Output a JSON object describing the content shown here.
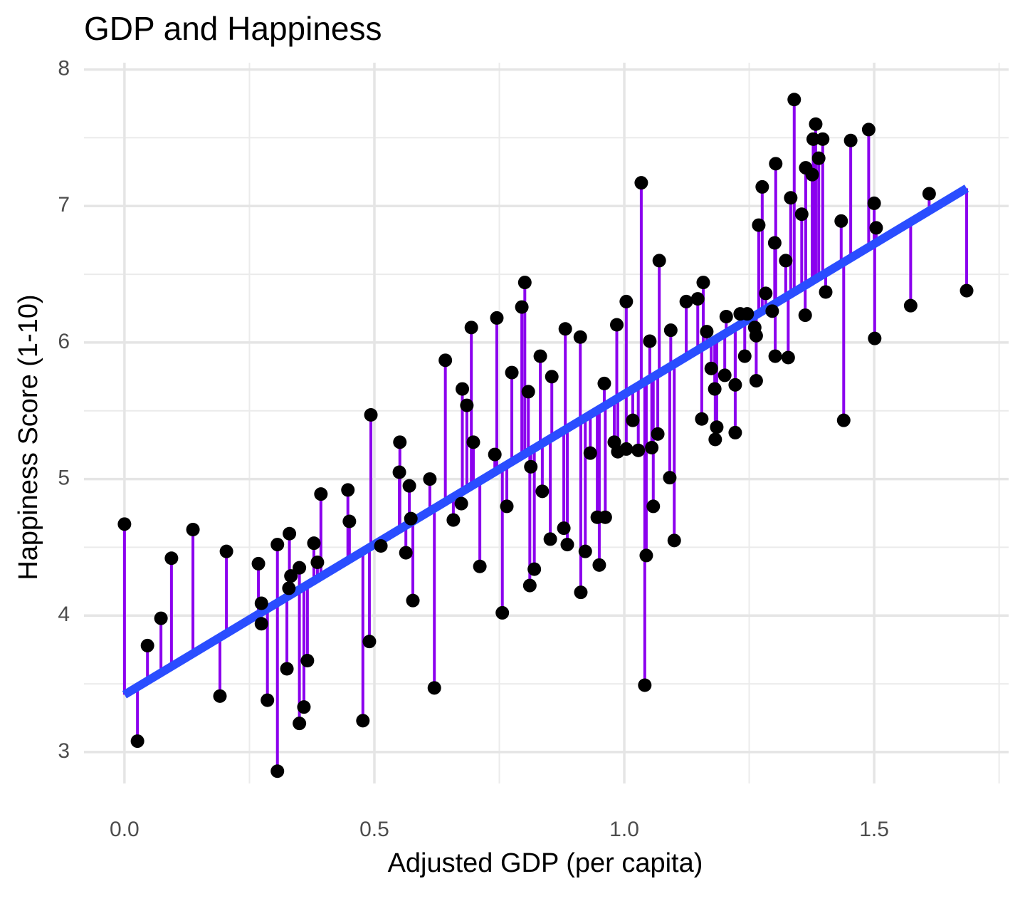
{
  "chart_data": {
    "type": "scatter",
    "title": "GDP and Happiness",
    "x_label": "Adjusted GDP (per capita)",
    "y_label": "Happiness Score (1-10)",
    "x": [
      0.0,
      0.026,
      0.046,
      0.073,
      0.094,
      0.137,
      0.191,
      0.204,
      0.268,
      0.274,
      0.274,
      0.286,
      0.306,
      0.306,
      0.325,
      0.33,
      0.333,
      0.329,
      0.35,
      0.35,
      0.359,
      0.366,
      0.379,
      0.386,
      0.393,
      0.447,
      0.45,
      0.477,
      0.49,
      0.493,
      0.513,
      0.551,
      0.55,
      0.563,
      0.57,
      0.573,
      0.577,
      0.611,
      0.62,
      0.642,
      0.658,
      0.674,
      0.676,
      0.685,
      0.694,
      0.698,
      0.711,
      0.741,
      0.745,
      0.756,
      0.765,
      0.775,
      0.795,
      0.801,
      0.808,
      0.811,
      0.813,
      0.82,
      0.832,
      0.836,
      0.852,
      0.855,
      0.879,
      0.882,
      0.886,
      0.912,
      0.913,
      0.922,
      0.932,
      0.946,
      0.95,
      0.96,
      0.962,
      0.98,
      0.985,
      0.987,
      1.004,
      1.004,
      1.017,
      1.028,
      1.034,
      1.041,
      1.044,
      1.051,
      1.055,
      1.058,
      1.067,
      1.07,
      1.091,
      1.093,
      1.1,
      1.124,
      1.147,
      1.155,
      1.158,
      1.165,
      1.174,
      1.181,
      1.182,
      1.185,
      1.201,
      1.204,
      1.222,
      1.222,
      1.232,
      1.241,
      1.246,
      1.261,
      1.264,
      1.264,
      1.269,
      1.276,
      1.283,
      1.296,
      1.301,
      1.302,
      1.303,
      1.323,
      1.328,
      1.333,
      1.34,
      1.355,
      1.362,
      1.363,
      1.376,
      1.378,
      1.383,
      1.389,
      1.397,
      1.403,
      1.434,
      1.439,
      1.453,
      1.489,
      1.5,
      1.501,
      1.504,
      1.573,
      1.61,
      1.685
    ],
    "values": [
      4.67,
      3.08,
      3.78,
      3.98,
      4.42,
      4.63,
      3.41,
      4.47,
      4.38,
      4.09,
      3.94,
      3.38,
      4.52,
      2.86,
      3.61,
      4.6,
      4.29,
      4.2,
      4.35,
      3.21,
      3.33,
      3.67,
      4.53,
      4.39,
      4.89,
      4.92,
      4.69,
      3.23,
      3.81,
      5.47,
      4.51,
      5.27,
      5.05,
      4.46,
      4.95,
      4.71,
      4.11,
      5.0,
      3.47,
      5.87,
      4.7,
      4.82,
      5.66,
      5.54,
      6.11,
      5.27,
      4.36,
      5.18,
      6.18,
      4.02,
      4.8,
      5.78,
      6.26,
      6.44,
      5.64,
      4.22,
      5.09,
      4.34,
      5.9,
      4.91,
      4.56,
      5.75,
      4.64,
      6.1,
      4.52,
      6.04,
      4.17,
      4.47,
      5.19,
      4.72,
      4.37,
      5.7,
      4.72,
      5.27,
      6.13,
      5.2,
      6.3,
      5.22,
      5.43,
      5.21,
      7.17,
      3.49,
      4.44,
      6.01,
      5.23,
      4.8,
      5.33,
      6.6,
      5.01,
      6.09,
      4.55,
      6.3,
      6.32,
      5.44,
      6.44,
      6.08,
      5.81,
      5.66,
      5.29,
      5.38,
      5.76,
      6.19,
      5.69,
      5.34,
      6.21,
      5.9,
      6.21,
      6.11,
      5.72,
      6.05,
      6.86,
      7.14,
      6.36,
      6.23,
      6.73,
      5.9,
      7.31,
      6.6,
      5.89,
      7.06,
      7.78,
      6.94,
      6.2,
      7.28,
      7.23,
      7.49,
      7.6,
      7.35,
      7.49,
      6.37,
      6.89,
      5.43,
      7.48,
      7.56,
      7.02,
      6.03,
      6.84,
      6.27,
      7.09,
      6.38
    ],
    "trend": {
      "x": [
        0.0,
        1.685
      ],
      "values": [
        3.42,
        7.13
      ],
      "color": "#2a4dff"
    },
    "color": "#000000",
    "residual_color": "#8b00ee",
    "xlim": [
      -0.081,
      1.769
    ],
    "ylim": [
      2.77,
      8.05
    ],
    "xticks": [
      {
        "value": 0,
        "label": "0.0"
      },
      0.5,
      {
        "value": 1,
        "label": "1.0"
      },
      1.5
    ],
    "xminorticks": [
      0.25,
      0.75,
      1.25,
      1.75
    ],
    "yticks": [
      3,
      4,
      5,
      6,
      7,
      8
    ],
    "yminorticks": [
      3.5,
      4.5,
      5.5,
      6.5,
      7.5
    ],
    "grid": true
  }
}
